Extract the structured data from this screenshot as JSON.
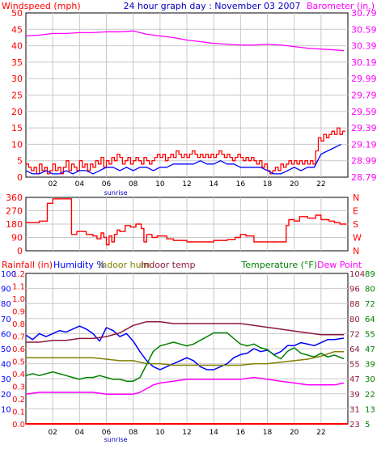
{
  "colors": {
    "bg": "#ffffff",
    "plotBg": "#ffffff",
    "axis": "#000000",
    "grid": "#c8c8c8",
    "red": "#ff0000",
    "blue": "#0000ff",
    "magenta": "#ff00ff",
    "olive": "#808000",
    "green": "#008000",
    "maroon": "#8b1a3a",
    "axisLabelBlue": "#0000c0"
  },
  "x_tick_labels": [
    "02",
    "04",
    "06",
    "08",
    "10",
    "12",
    "14",
    "16",
    "18",
    "20",
    "22"
  ],
  "x_tick_hours": [
    2,
    4,
    6,
    8,
    10,
    12,
    14,
    16,
    18,
    20,
    22
  ],
  "sunrise_label": "sunrise",
  "sunrise_hour": 6.7,
  "chart_data": [
    {
      "type": "line",
      "title": "24 hour graph day : November 03 2007",
      "left_axis_label": "Windspeed (mph)",
      "right_axis_label": "Barometer (in.)",
      "x_range": [
        0,
        24
      ],
      "left_ylim": [
        0,
        50
      ],
      "left_ticks": [
        0,
        5,
        10,
        15,
        20,
        25,
        30,
        35,
        40,
        45,
        50
      ],
      "right_ylim": [
        28.79,
        30.79
      ],
      "right_ticks": [
        "28.79",
        "28.99",
        "29.19",
        "29.39",
        "29.59",
        "29.79",
        "29.99",
        "30.19",
        "30.39",
        "30.59",
        "30.79"
      ],
      "series": [
        {
          "key": "gust",
          "color": "red",
          "axis": "left",
          "step": true,
          "x": [
            0,
            0.2,
            0.4,
            0.6,
            0.8,
            1.0,
            1.2,
            1.4,
            1.6,
            1.8,
            2.0,
            2.2,
            2.4,
            2.6,
            2.8,
            3.0,
            3.2,
            3.4,
            3.6,
            3.8,
            4.0,
            4.2,
            4.4,
            4.6,
            4.8,
            5.0,
            5.2,
            5.4,
            5.6,
            5.8,
            6.0,
            6.2,
            6.4,
            6.6,
            6.8,
            7.0,
            7.2,
            7.4,
            7.6,
            7.8,
            8.0,
            8.2,
            8.4,
            8.6,
            8.8,
            9.0,
            9.2,
            9.4,
            9.6,
            9.8,
            10.0,
            10.2,
            10.4,
            10.6,
            10.8,
            11.0,
            11.2,
            11.4,
            11.6,
            11.8,
            12.0,
            12.2,
            12.4,
            12.6,
            12.8,
            13.0,
            13.2,
            13.4,
            13.6,
            13.8,
            14.0,
            14.2,
            14.4,
            14.6,
            14.8,
            15.0,
            15.2,
            15.4,
            15.6,
            15.8,
            16.0,
            16.2,
            16.4,
            16.6,
            16.8,
            17.0,
            17.2,
            17.4,
            17.6,
            17.8,
            18.0,
            18.2,
            18.4,
            18.6,
            18.8,
            19.0,
            19.2,
            19.4,
            19.6,
            19.8,
            20.0,
            20.2,
            20.4,
            20.6,
            20.8,
            21.0,
            21.2,
            21.4,
            21.6,
            21.8,
            22.0,
            22.2,
            22.4,
            22.6,
            22.8,
            23.0,
            23.2,
            23.4,
            23.6
          ],
          "values": [
            4,
            3,
            2,
            3,
            1,
            4,
            2,
            3,
            1,
            2,
            4,
            2,
            3,
            1,
            3,
            5,
            2,
            4,
            3,
            2,
            5,
            3,
            4,
            2,
            4,
            3,
            5,
            4,
            6,
            3,
            5,
            4,
            6,
            5,
            7,
            6,
            4,
            5,
            6,
            4,
            5,
            6,
            5,
            4,
            6,
            5,
            4,
            5,
            6,
            7,
            6,
            7,
            5,
            6,
            7,
            6,
            8,
            7,
            6,
            7,
            6,
            7,
            8,
            7,
            6,
            7,
            6,
            7,
            6,
            7,
            6,
            7,
            8,
            7,
            6,
            7,
            6,
            5,
            6,
            7,
            6,
            5,
            6,
            5,
            6,
            5,
            4,
            5,
            3,
            4,
            2,
            1,
            2,
            3,
            2,
            4,
            3,
            4,
            5,
            4,
            5,
            4,
            5,
            4,
            5,
            4,
            5,
            4,
            8,
            12,
            11,
            13,
            12,
            13,
            14,
            13,
            15,
            13,
            14
          ]
        },
        {
          "key": "wind",
          "color": "blue",
          "axis": "left",
          "step": false,
          "x": [
            0,
            0.5,
            1.0,
            1.5,
            2.0,
            2.5,
            3.0,
            3.5,
            4.0,
            4.5,
            5.0,
            5.5,
            6.0,
            6.5,
            7.0,
            7.5,
            8.0,
            8.5,
            9.0,
            9.5,
            10.0,
            10.5,
            11.0,
            11.5,
            12.0,
            12.5,
            13.0,
            13.5,
            14.0,
            14.5,
            15.0,
            15.5,
            16.0,
            16.5,
            17.0,
            17.5,
            18.0,
            18.5,
            19.0,
            19.5,
            20.0,
            20.5,
            21.0,
            21.5,
            22.0,
            22.5,
            23.0,
            23.5
          ],
          "values": [
            2,
            1,
            1,
            2,
            1,
            1,
            2,
            1,
            2,
            2,
            1,
            2,
            3,
            3,
            2,
            3,
            2,
            3,
            3,
            2,
            3,
            3,
            4,
            4,
            4,
            4,
            5,
            4,
            4,
            5,
            4,
            4,
            3,
            3,
            3,
            3,
            2,
            1,
            1,
            2,
            3,
            2,
            3,
            3,
            7,
            8,
            9,
            10
          ]
        },
        {
          "key": "barometer",
          "color": "magenta",
          "axis": "right",
          "step": false,
          "x": [
            0,
            1,
            2,
            3,
            4,
            5,
            6,
            7,
            8,
            9,
            10,
            11,
            12,
            13,
            14,
            15,
            16,
            17,
            18,
            19,
            20,
            21,
            22,
            23,
            23.7
          ],
          "values": [
            30.51,
            30.52,
            30.54,
            30.54,
            30.55,
            30.55,
            30.56,
            30.56,
            30.57,
            30.53,
            30.51,
            30.49,
            30.46,
            30.44,
            30.42,
            30.41,
            30.4,
            30.4,
            30.41,
            30.4,
            30.38,
            30.36,
            30.35,
            30.34,
            30.33
          ]
        }
      ]
    },
    {
      "type": "line",
      "title": "",
      "y_range_deg": [
        0,
        360
      ],
      "left_ticks": [
        0,
        90,
        180,
        270,
        360
      ],
      "right_ticks": [
        "N",
        "W",
        "S",
        "E",
        "N"
      ],
      "series": [
        {
          "key": "direction",
          "color": "red",
          "step": true,
          "x": [
            0,
            1.0,
            1.6,
            2.0,
            3.2,
            3.4,
            3.8,
            4.5,
            5.0,
            5.3,
            5.6,
            5.8,
            6.0,
            6.2,
            6.4,
            6.6,
            6.8,
            7.0,
            7.4,
            7.8,
            8.2,
            8.6,
            8.8,
            9.0,
            9.4,
            9.8,
            10.5,
            11.0,
            12.0,
            13.0,
            14.0,
            15.0,
            15.6,
            16.0,
            16.4,
            17.0,
            18.0,
            19.0,
            19.4,
            19.6,
            20.0,
            20.4,
            21.0,
            21.6,
            22.0,
            22.6,
            23.0,
            23.4,
            23.7
          ],
          "values": [
            190,
            200,
            320,
            350,
            350,
            110,
            130,
            110,
            100,
            80,
            120,
            90,
            40,
            100,
            60,
            110,
            140,
            130,
            170,
            160,
            180,
            150,
            60,
            110,
            90,
            100,
            80,
            70,
            60,
            60,
            70,
            75,
            90,
            110,
            100,
            60,
            60,
            60,
            170,
            210,
            200,
            230,
            220,
            240,
            210,
            200,
            190,
            180,
            180
          ]
        }
      ]
    },
    {
      "type": "line",
      "title": "",
      "labels": {
        "rainfall": "Rainfall (in)",
        "humidity": "Humidity %",
        "indoor_hum": "Indoor hum",
        "indoor_temp": "Indoor temp",
        "temperature": "Temperature (°F)",
        "dew_point": "Dew Point"
      },
      "rain_ticks": [
        "0.0",
        "0.1",
        "0.2",
        "0.3",
        "0.4",
        "0.5",
        "0.6",
        "0.7",
        "0.8",
        "0.9",
        "1.0",
        "1.1",
        "1.2"
      ],
      "humidity_ticks": [
        "10",
        "20",
        "30",
        "40",
        "50",
        "60",
        "70",
        "80",
        "90",
        "100"
      ],
      "temp_ticks": [
        "23",
        "31",
        "39",
        "47",
        "55",
        "64",
        "72",
        "80",
        "88",
        "96",
        "104"
      ],
      "dew_ticks": [
        "5",
        "13",
        "22",
        "30",
        "39",
        "47",
        "55",
        "64",
        "72",
        "80",
        "89"
      ],
      "rain_ylim": [
        0,
        1.2
      ],
      "humidity_ylim": [
        0,
        100
      ],
      "temp_ylim": [
        23,
        104
      ],
      "series": [
        {
          "key": "humidity",
          "color": "blue",
          "axis": "humidity",
          "x": [
            0,
            0.5,
            1.0,
            1.5,
            2.0,
            2.5,
            3.0,
            3.5,
            4.0,
            4.5,
            5.0,
            5.5,
            6.0,
            6.5,
            7.0,
            7.5,
            8.0,
            8.5,
            9.0,
            9.5,
            10.0,
            10.5,
            11.0,
            11.5,
            12.0,
            12.5,
            13.0,
            13.5,
            14.0,
            14.5,
            15.0,
            15.5,
            16.0,
            16.5,
            17.0,
            17.5,
            18.0,
            18.5,
            19.0,
            19.5,
            20.0,
            20.5,
            21.0,
            21.5,
            22.0,
            22.5,
            23.0,
            23.7
          ],
          "values": [
            59,
            56,
            60,
            58,
            60,
            62,
            61,
            63,
            65,
            63,
            60,
            55,
            64,
            62,
            58,
            60,
            55,
            48,
            42,
            38,
            36,
            38,
            40,
            42,
            44,
            42,
            38,
            36,
            36,
            38,
            40,
            44,
            46,
            47,
            50,
            48,
            49,
            46,
            48,
            52,
            52,
            54,
            53,
            52,
            54,
            56,
            56,
            57
          ]
        },
        {
          "key": "indoor_hum",
          "color": "olive",
          "axis": "humidity",
          "x": [
            0,
            1,
            2,
            3,
            4,
            5,
            6,
            7,
            8,
            9,
            10,
            11,
            12,
            13,
            14,
            15,
            16,
            17,
            18,
            19,
            20,
            21,
            22,
            23,
            23.7
          ],
          "values": [
            44,
            44,
            44,
            44,
            44,
            44,
            43,
            42,
            42,
            40,
            40,
            39,
            39,
            39,
            39,
            39,
            39,
            40,
            40,
            41,
            42,
            43,
            45,
            48,
            48
          ]
        },
        {
          "key": "indoor_temp",
          "color": "maroon",
          "axis": "temp",
          "x": [
            0,
            1,
            2,
            3,
            4,
            5,
            6,
            7,
            8,
            8.5,
            9,
            10,
            11,
            12,
            13,
            14,
            15,
            16,
            17,
            18,
            19,
            20,
            21,
            22,
            23,
            23.7
          ],
          "values": [
            67,
            67,
            68,
            68,
            69,
            69,
            70,
            72,
            76,
            77,
            78,
            78,
            77,
            77,
            77,
            77,
            77,
            77,
            76,
            75,
            74,
            73,
            72,
            71,
            71,
            71
          ]
        },
        {
          "key": "temperature",
          "color": "green",
          "axis": "temp",
          "x": [
            0,
            0.5,
            1.0,
            1.5,
            2.0,
            2.5,
            3.0,
            3.5,
            4.0,
            4.5,
            5.0,
            5.5,
            6.0,
            6.5,
            7.0,
            7.5,
            8.0,
            8.5,
            9.0,
            9.5,
            10.0,
            10.5,
            11.0,
            11.5,
            12.0,
            12.5,
            13.0,
            13.5,
            14.0,
            14.5,
            15.0,
            15.5,
            16.0,
            16.5,
            17.0,
            17.5,
            18.0,
            18.5,
            19.0,
            19.5,
            20.0,
            20.5,
            21.0,
            21.5,
            22.0,
            22.5,
            23.0,
            23.7
          ],
          "values": [
            49,
            50,
            49,
            50,
            51,
            50,
            49,
            48,
            47,
            48,
            48,
            49,
            48,
            47,
            47,
            46,
            46,
            48,
            55,
            62,
            65,
            66,
            67,
            66,
            65,
            66,
            68,
            70,
            72,
            72,
            72,
            69,
            66,
            65,
            66,
            64,
            63,
            60,
            58,
            62,
            64,
            61,
            60,
            59,
            61,
            59,
            60,
            58
          ]
        },
        {
          "key": "dew_point",
          "color": "magenta",
          "axis": "temp",
          "x": [
            0,
            1,
            2,
            3,
            4,
            5,
            6,
            7,
            8,
            8.5,
            9,
            9.5,
            10,
            11,
            12,
            13,
            14,
            15,
            16,
            17,
            18,
            19,
            20,
            21,
            22,
            23,
            23.7
          ],
          "values": [
            39,
            40,
            40,
            40,
            40,
            40,
            39,
            39,
            39,
            40,
            42,
            44,
            45,
            46,
            47,
            47,
            47,
            47,
            47,
            48,
            47,
            46,
            45,
            44,
            44,
            44,
            45
          ]
        },
        {
          "key": "rainfall",
          "color": "red",
          "axis": "rain",
          "x": [
            0,
            24
          ],
          "values": [
            0,
            0
          ]
        }
      ]
    }
  ]
}
